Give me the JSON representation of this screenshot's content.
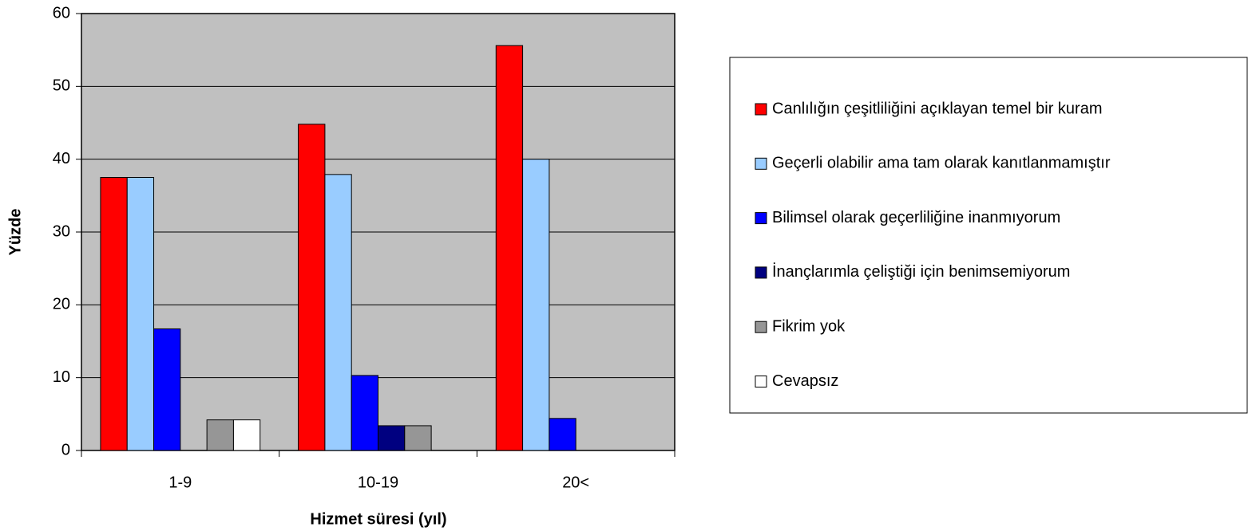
{
  "chart_data": {
    "type": "bar",
    "x_label": "Hizmet süresi (yıl)",
    "y_label": "Yüzde",
    "categories": [
      "1-9",
      "10-19",
      "20<"
    ],
    "series": [
      {
        "name": "Canlılığın çeşitliliğini açıklayan temel bir kuram",
        "color": "#ff0000",
        "values": [
          37.5,
          44.8,
          55.6
        ]
      },
      {
        "name": "Geçerli olabilir ama tam olarak kanıtlanmamıştır",
        "color": "#99ccff",
        "values": [
          37.5,
          37.9,
          40
        ]
      },
      {
        "name": "Bilimsel olarak geçerliliğine inanmıyorum",
        "color": "#0000ff",
        "values": [
          16.7,
          10.3,
          4.4
        ]
      },
      {
        "name": "İnançlarımla çeliştiği için benimsemiyorum",
        "color": "#000080",
        "values": [
          0,
          3.4,
          0
        ]
      },
      {
        "name": "Fikrim yok",
        "color": "#969696",
        "values": [
          4.2,
          3.4,
          0
        ]
      },
      {
        "name": "Cevapsız",
        "color": "#ffffff",
        "values": [
          4.2,
          0,
          0
        ]
      }
    ],
    "ylim": [
      0,
      60
    ],
    "yticks": [
      0,
      10,
      20,
      30,
      40,
      50,
      60
    ],
    "grid": true,
    "plot_background": "#c0c0c0",
    "legend": "right"
  }
}
